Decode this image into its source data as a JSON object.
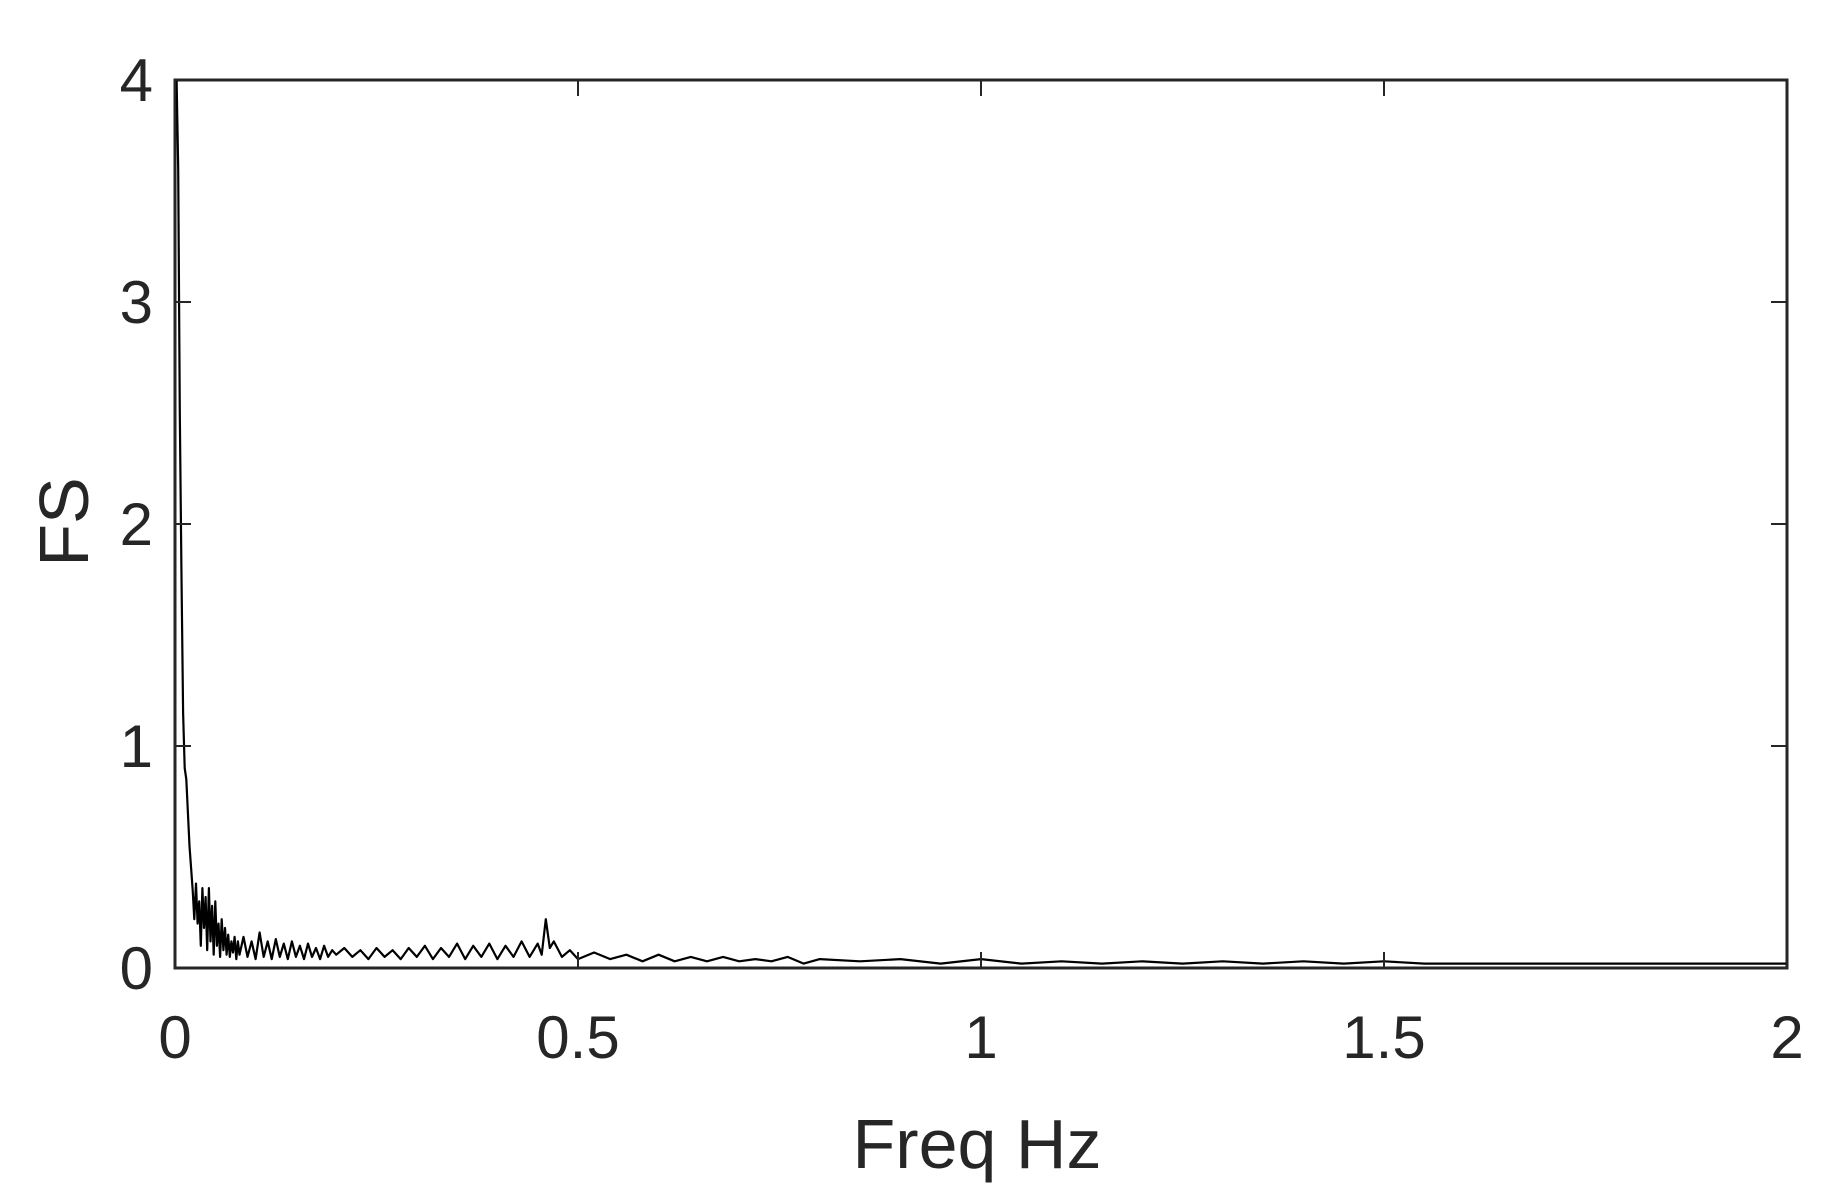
{
  "chart_data": {
    "type": "line",
    "title": "",
    "xlabel": "Freq Hz",
    "ylabel": "FS",
    "xlim": [
      0,
      2
    ],
    "ylim": [
      0,
      4
    ],
    "xticks": [
      "0",
      "0.5",
      "1",
      "1.5",
      "2"
    ],
    "yticks": [
      "0",
      "1",
      "2",
      "3",
      "4"
    ],
    "grid": false,
    "line_color": "#000000",
    "series": [
      {
        "x": [
          0.002,
          0.004,
          0.006,
          0.008,
          0.01,
          0.012,
          0.014,
          0.016,
          0.018,
          0.02,
          0.022,
          0.024,
          0.026,
          0.028,
          0.03,
          0.032,
          0.034,
          0.036,
          0.038,
          0.04,
          0.042,
          0.044,
          0.046,
          0.048,
          0.05,
          0.052,
          0.054,
          0.056,
          0.058,
          0.06,
          0.062,
          0.064,
          0.066,
          0.068,
          0.07,
          0.072,
          0.074,
          0.076,
          0.078,
          0.08,
          0.085,
          0.09,
          0.095,
          0.1,
          0.105,
          0.11,
          0.115,
          0.12,
          0.125,
          0.13,
          0.135,
          0.14,
          0.145,
          0.15,
          0.155,
          0.16,
          0.165,
          0.17,
          0.175,
          0.18,
          0.185,
          0.19,
          0.195,
          0.2,
          0.21,
          0.22,
          0.23,
          0.24,
          0.25,
          0.26,
          0.27,
          0.28,
          0.29,
          0.3,
          0.31,
          0.32,
          0.33,
          0.34,
          0.35,
          0.36,
          0.37,
          0.38,
          0.39,
          0.4,
          0.41,
          0.42,
          0.43,
          0.44,
          0.45,
          0.455,
          0.46,
          0.465,
          0.47,
          0.48,
          0.49,
          0.5,
          0.52,
          0.54,
          0.56,
          0.58,
          0.6,
          0.62,
          0.64,
          0.66,
          0.68,
          0.7,
          0.72,
          0.74,
          0.76,
          0.78,
          0.8,
          0.85,
          0.9,
          0.95,
          1.0,
          1.05,
          1.1,
          1.15,
          1.2,
          1.25,
          1.3,
          1.35,
          1.4,
          1.45,
          1.5,
          1.55,
          1.6,
          1.65,
          1.7,
          1.75,
          1.8,
          1.85,
          1.9,
          1.95,
          2.0
        ],
        "y": [
          4.0,
          3.6,
          2.5,
          1.8,
          1.15,
          0.9,
          0.85,
          0.7,
          0.55,
          0.45,
          0.35,
          0.22,
          0.38,
          0.2,
          0.3,
          0.1,
          0.36,
          0.18,
          0.32,
          0.08,
          0.36,
          0.12,
          0.28,
          0.06,
          0.3,
          0.1,
          0.2,
          0.05,
          0.22,
          0.08,
          0.18,
          0.06,
          0.15,
          0.05,
          0.12,
          0.07,
          0.14,
          0.04,
          0.12,
          0.06,
          0.14,
          0.05,
          0.12,
          0.04,
          0.16,
          0.05,
          0.12,
          0.04,
          0.13,
          0.05,
          0.11,
          0.04,
          0.12,
          0.05,
          0.1,
          0.04,
          0.11,
          0.05,
          0.09,
          0.04,
          0.1,
          0.05,
          0.08,
          0.06,
          0.09,
          0.05,
          0.08,
          0.04,
          0.09,
          0.05,
          0.08,
          0.04,
          0.09,
          0.05,
          0.1,
          0.04,
          0.09,
          0.05,
          0.11,
          0.04,
          0.1,
          0.05,
          0.11,
          0.04,
          0.1,
          0.05,
          0.12,
          0.05,
          0.11,
          0.06,
          0.22,
          0.09,
          0.12,
          0.05,
          0.08,
          0.04,
          0.07,
          0.04,
          0.06,
          0.03,
          0.06,
          0.03,
          0.05,
          0.03,
          0.05,
          0.03,
          0.04,
          0.03,
          0.05,
          0.02,
          0.04,
          0.03,
          0.04,
          0.02,
          0.04,
          0.02,
          0.03,
          0.02,
          0.03,
          0.02,
          0.03,
          0.02,
          0.03,
          0.02,
          0.03,
          0.02,
          0.02,
          0.02,
          0.02,
          0.02,
          0.02,
          0.02,
          0.02,
          0.02,
          0.02
        ]
      }
    ]
  }
}
